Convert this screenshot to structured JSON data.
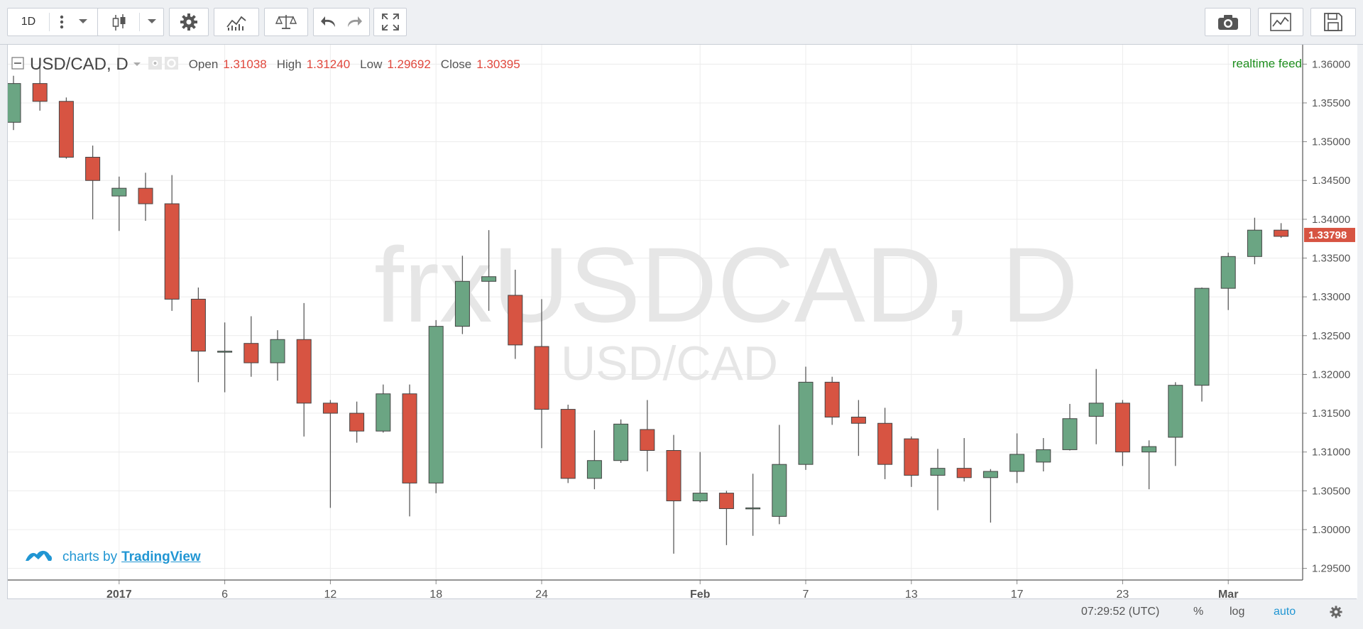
{
  "toolbar": {
    "interval": "1D",
    "buttons": [
      "more-icon",
      "dropdown-icon",
      "candles-icon",
      "settings-icon",
      "indicators-icon",
      "compare-icon",
      "undo-icon",
      "redo-icon",
      "fullscreen-icon",
      "camera-icon",
      "chart-icon",
      "save-icon"
    ]
  },
  "legend": {
    "symbol": "USD/CAD, D",
    "open_label": "Open",
    "open": "1.31038",
    "high_label": "High",
    "high": "1.31240",
    "low_label": "Low",
    "low": "1.29692",
    "close_label": "Close",
    "close": "1.30395"
  },
  "realtime_label": "realtime feed",
  "watermark": {
    "main": "frxUSDCAD, D",
    "sub": "USD/CAD"
  },
  "branding": {
    "prefix": "charts by",
    "name": "TradingView"
  },
  "statusbar": {
    "time": "07:29:52 (UTC)",
    "percent": "%",
    "log": "log",
    "auto": "auto"
  },
  "colors": {
    "up": "#6ba583",
    "down": "#d75442",
    "price_tag": "#d75442",
    "accent": "#2196d3"
  },
  "chart_data": {
    "type": "candlestick",
    "ylim": [
      1.2935,
      1.3625
    ],
    "y_ticks": [
      "1.36000",
      "1.35500",
      "1.35000",
      "1.34500",
      "1.34000",
      "1.33500",
      "1.33000",
      "1.32500",
      "1.32000",
      "1.31500",
      "1.31000",
      "1.30500",
      "1.30000",
      "1.29500"
    ],
    "x_ticks": [
      {
        "label": "2017",
        "index": 4,
        "bold": true
      },
      {
        "label": "6",
        "index": 8
      },
      {
        "label": "12",
        "index": 12
      },
      {
        "label": "18",
        "index": 16
      },
      {
        "label": "24",
        "index": 20
      },
      {
        "label": "Feb",
        "index": 26,
        "bold": true
      },
      {
        "label": "7",
        "index": 30
      },
      {
        "label": "13",
        "index": 34
      },
      {
        "label": "17",
        "index": 38
      },
      {
        "label": "23",
        "index": 42
      },
      {
        "label": "Mar",
        "index": 46,
        "bold": true
      }
    ],
    "last_price": "1.33798",
    "candles": [
      {
        "o": 1.3525,
        "h": 1.3585,
        "l": 1.3515,
        "c": 1.3575
      },
      {
        "o": 1.3575,
        "h": 1.36,
        "l": 1.354,
        "c": 1.3552
      },
      {
        "o": 1.3552,
        "h": 1.3557,
        "l": 1.3478,
        "c": 1.348
      },
      {
        "o": 1.348,
        "h": 1.3495,
        "l": 1.34,
        "c": 1.345
      },
      {
        "o": 1.343,
        "h": 1.3455,
        "l": 1.3385,
        "c": 1.344
      },
      {
        "o": 1.344,
        "h": 1.346,
        "l": 1.3398,
        "c": 1.342
      },
      {
        "o": 1.342,
        "h": 1.3457,
        "l": 1.3282,
        "c": 1.3297
      },
      {
        "o": 1.3297,
        "h": 1.3312,
        "l": 1.319,
        "c": 1.323
      },
      {
        "o": 1.323,
        "h": 1.3267,
        "l": 1.3177,
        "c": 1.323
      },
      {
        "o": 1.324,
        "h": 1.3275,
        "l": 1.3197,
        "c": 1.3215
      },
      {
        "o": 1.3215,
        "h": 1.3257,
        "l": 1.3192,
        "c": 1.3245
      },
      {
        "o": 1.3245,
        "h": 1.3292,
        "l": 1.312,
        "c": 1.3163
      },
      {
        "o": 1.3163,
        "h": 1.3167,
        "l": 1.3028,
        "c": 1.315
      },
      {
        "o": 1.315,
        "h": 1.3165,
        "l": 1.3112,
        "c": 1.3127
      },
      {
        "o": 1.3127,
        "h": 1.3187,
        "l": 1.3125,
        "c": 1.3175
      },
      {
        "o": 1.3175,
        "h": 1.3187,
        "l": 1.3017,
        "c": 1.306
      },
      {
        "o": 1.306,
        "h": 1.327,
        "l": 1.3047,
        "c": 1.3262
      },
      {
        "o": 1.3262,
        "h": 1.3353,
        "l": 1.3252,
        "c": 1.332
      },
      {
        "o": 1.332,
        "h": 1.3386,
        "l": 1.3282,
        "c": 1.3326
      },
      {
        "o": 1.3302,
        "h": 1.3335,
        "l": 1.322,
        "c": 1.3238
      },
      {
        "o": 1.3236,
        "h": 1.3297,
        "l": 1.3105,
        "c": 1.3155
      },
      {
        "o": 1.3155,
        "h": 1.3161,
        "l": 1.306,
        "c": 1.3066
      },
      {
        "o": 1.3066,
        "h": 1.3128,
        "l": 1.3052,
        "c": 1.3089
      },
      {
        "o": 1.3089,
        "h": 1.3142,
        "l": 1.3086,
        "c": 1.3136
      },
      {
        "o": 1.3129,
        "h": 1.3167,
        "l": 1.3075,
        "c": 1.3102
      },
      {
        "o": 1.3102,
        "h": 1.3122,
        "l": 1.2969,
        "c": 1.3037
      },
      {
        "o": 1.3037,
        "h": 1.31,
        "l": 1.3035,
        "c": 1.3047
      },
      {
        "o": 1.3047,
        "h": 1.305,
        "l": 1.298,
        "c": 1.3027
      },
      {
        "o": 1.3027,
        "h": 1.3072,
        "l": 1.2992,
        "c": 1.3028
      },
      {
        "o": 1.3017,
        "h": 1.3135,
        "l": 1.3007,
        "c": 1.3084
      },
      {
        "o": 1.3084,
        "h": 1.321,
        "l": 1.3077,
        "c": 1.319
      },
      {
        "o": 1.319,
        "h": 1.3197,
        "l": 1.3135,
        "c": 1.3145
      },
      {
        "o": 1.3145,
        "h": 1.3167,
        "l": 1.3095,
        "c": 1.3137
      },
      {
        "o": 1.3137,
        "h": 1.3157,
        "l": 1.3065,
        "c": 1.3084
      },
      {
        "o": 1.3117,
        "h": 1.312,
        "l": 1.3055,
        "c": 1.307
      },
      {
        "o": 1.307,
        "h": 1.3104,
        "l": 1.3025,
        "c": 1.3079
      },
      {
        "o": 1.3079,
        "h": 1.3118,
        "l": 1.3062,
        "c": 1.3067
      },
      {
        "o": 1.3067,
        "h": 1.3078,
        "l": 1.3009,
        "c": 1.3075
      },
      {
        "o": 1.3075,
        "h": 1.3124,
        "l": 1.306,
        "c": 1.3097
      },
      {
        "o": 1.3087,
        "h": 1.3118,
        "l": 1.3075,
        "c": 1.3103
      },
      {
        "o": 1.3103,
        "h": 1.3162,
        "l": 1.3102,
        "c": 1.3143
      },
      {
        "o": 1.3146,
        "h": 1.3207,
        "l": 1.311,
        "c": 1.3163
      },
      {
        "o": 1.3163,
        "h": 1.3167,
        "l": 1.3082,
        "c": 1.31
      },
      {
        "o": 1.31,
        "h": 1.3115,
        "l": 1.3052,
        "c": 1.3107
      },
      {
        "o": 1.3119,
        "h": 1.319,
        "l": 1.3082,
        "c": 1.3186
      },
      {
        "o": 1.3186,
        "h": 1.3312,
        "l": 1.3165,
        "c": 1.3311
      },
      {
        "o": 1.3311,
        "h": 1.3357,
        "l": 1.3283,
        "c": 1.3352
      },
      {
        "o": 1.3352,
        "h": 1.3402,
        "l": 1.3342,
        "c": 1.3386
      },
      {
        "o": 1.3386,
        "h": 1.3395,
        "l": 1.3376,
        "c": 1.3378
      }
    ]
  }
}
